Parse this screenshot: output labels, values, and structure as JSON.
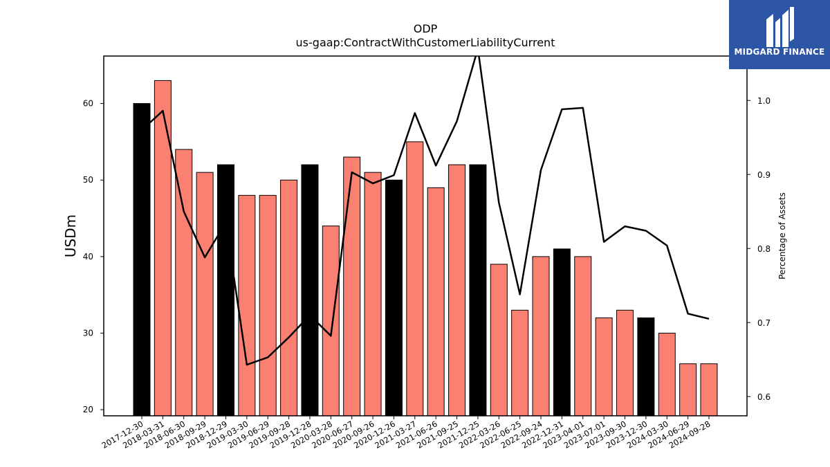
{
  "chart_data": {
    "type": "bar",
    "title": "ODP",
    "subtitle": "us-gaap:ContractWithCustomerLiabilityCurrent",
    "ylabel": "USDm",
    "y2label": "Percentage of Assets",
    "ylim": [
      19.2,
      66.2
    ],
    "y2lim": [
      0.574,
      1.06
    ],
    "yticks": [
      "20",
      "30",
      "40",
      "50",
      "60"
    ],
    "y2ticks": [
      "0.6",
      "0.7",
      "0.8",
      "0.9",
      "1.0"
    ],
    "categories": [
      "2017-12-30",
      "2018-03-31",
      "2018-06-30",
      "2018-09-29",
      "2018-12-29",
      "2019-03-30",
      "2019-06-29",
      "2019-09-28",
      "2019-12-28",
      "2020-03-28",
      "2020-06-27",
      "2020-09-26",
      "2020-12-26",
      "2021-03-27",
      "2021-06-26",
      "2021-09-25",
      "2021-12-25",
      "2022-03-26",
      "2022-06-25",
      "2022-09-24",
      "2022-12-31",
      "2023-04-01",
      "2023-07-01",
      "2023-09-30",
      "2023-12-30",
      "2024-03-30",
      "2024-06-29",
      "2024-09-28"
    ],
    "series": [
      {
        "kind": "bar",
        "values": [
          60,
          63,
          54,
          51,
          52,
          48,
          48,
          50,
          52,
          44,
          53,
          51,
          50,
          55,
          49,
          52,
          52,
          39,
          33,
          40,
          41,
          40,
          32,
          33,
          32,
          30,
          26,
          26
        ],
        "highlight": [
          true,
          false,
          false,
          false,
          true,
          false,
          false,
          false,
          true,
          false,
          false,
          false,
          true,
          false,
          false,
          false,
          true,
          false,
          false,
          false,
          true,
          false,
          false,
          false,
          true,
          false,
          false,
          false
        ]
      },
      {
        "kind": "line",
        "axis": "right",
        "values": [
          0.96,
          0.986,
          0.85,
          0.788,
          0.835,
          0.643,
          0.653,
          0.68,
          0.71,
          0.682,
          0.903,
          0.888,
          0.899,
          0.983,
          0.912,
          0.972,
          1.07,
          0.862,
          0.738,
          0.906,
          0.988,
          0.99,
          0.809,
          0.83,
          0.824,
          0.804,
          0.712,
          0.705
        ]
      }
    ],
    "colors": {
      "bar": "#fa8072",
      "highlight_bar": "#000000",
      "line": "#000000"
    },
    "grid": false
  },
  "branding": {
    "name": "MIDGARD FINANCE",
    "color": "#2d55a5",
    "icon": "midgard-logo-mark"
  }
}
